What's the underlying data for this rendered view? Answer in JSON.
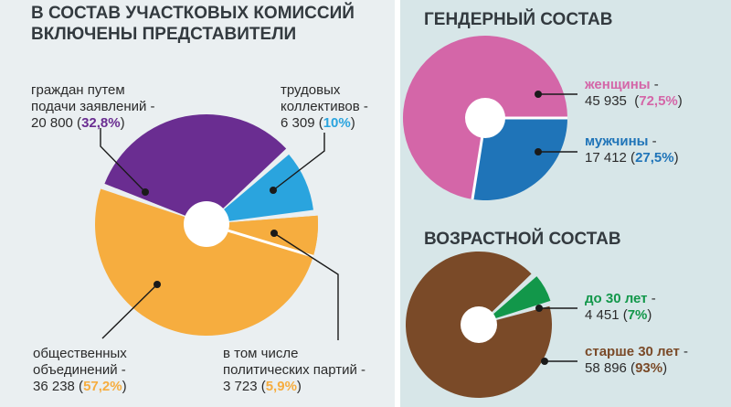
{
  "left": {
    "title_line1": "В СОСТАВ УЧАСТКОВЫХ КОМИССИЙ",
    "title_line2": "ВКЛЮЧЕНЫ ПРЕДСТАВИТЕЛИ"
  },
  "right": {
    "gender_title": "ГЕНДЕРНЫЙ СОСТАВ",
    "age_title": "ВОЗРАСТНОЙ СОСТАВ"
  },
  "colors": {
    "purple": "#6a2d91",
    "blue": "#2aa4de",
    "orange": "#f6ad3f",
    "pink": "#d466a8",
    "dark_blue": "#1f74b8",
    "green": "#12974a",
    "brown": "#7a4a28"
  },
  "chart_data": [
    {
      "type": "pie",
      "categories": [
        "граждан путем подачи заявлений",
        "трудовых коллективов",
        "общественных объединений",
        "в том числе политических партий"
      ],
      "values": [
        20800,
        6309,
        36238,
        3723
      ],
      "percent_labels": [
        "32,8%",
        "10%",
        "57,2%",
        "5,9%"
      ],
      "value_labels": [
        "20 800",
        "6 309",
        "36 238",
        "3 723"
      ],
      "label_lines": [
        [
          "граждан путем",
          "подачи заявлений -"
        ],
        [
          "трудовых",
          "коллективов -"
        ],
        [
          "общественных",
          "объединений -"
        ],
        [
          "в том числе",
          "политических партий -"
        ]
      ]
    },
    {
      "type": "pie",
      "title": "ГЕНДЕРНЫЙ СОСТАВ",
      "categories": [
        "женщины",
        "мужчины"
      ],
      "values": [
        45935,
        17412
      ],
      "value_labels": [
        "45 935",
        "17 412"
      ],
      "percent_labels": [
        "72,5%",
        "27,5%"
      ]
    },
    {
      "type": "pie",
      "title": "ВОЗРАСТНОЙ СОСТАВ",
      "categories": [
        "до 30 лет",
        "старше 30 лет"
      ],
      "values": [
        4451,
        58896
      ],
      "value_labels": [
        "4 451",
        "58 896"
      ],
      "percent_labels": [
        "7%",
        "93%"
      ]
    }
  ]
}
